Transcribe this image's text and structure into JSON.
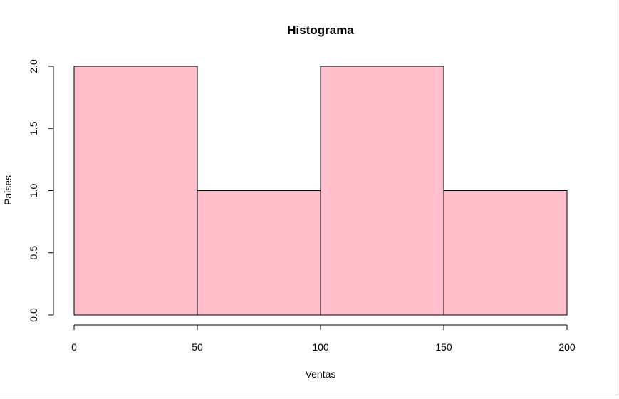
{
  "chart_data": {
    "type": "bar",
    "title": "Histograma",
    "xlabel": "Ventas",
    "ylabel": "Paises",
    "bins": [
      {
        "from": 0,
        "to": 50,
        "count": 2
      },
      {
        "from": 50,
        "to": 100,
        "count": 1
      },
      {
        "from": 100,
        "to": 150,
        "count": 2
      },
      {
        "from": 150,
        "to": 200,
        "count": 1
      }
    ],
    "xlim": [
      0,
      200
    ],
    "ylim": [
      0,
      2
    ],
    "x_ticks": [
      "0",
      "50",
      "100",
      "150",
      "200"
    ],
    "y_ticks": [
      "0.0",
      "0.5",
      "1.0",
      "1.5",
      "2.0"
    ],
    "bar_color": "#ffc0cb",
    "edge_color": "#000000",
    "grid": false,
    "legend": "none"
  }
}
